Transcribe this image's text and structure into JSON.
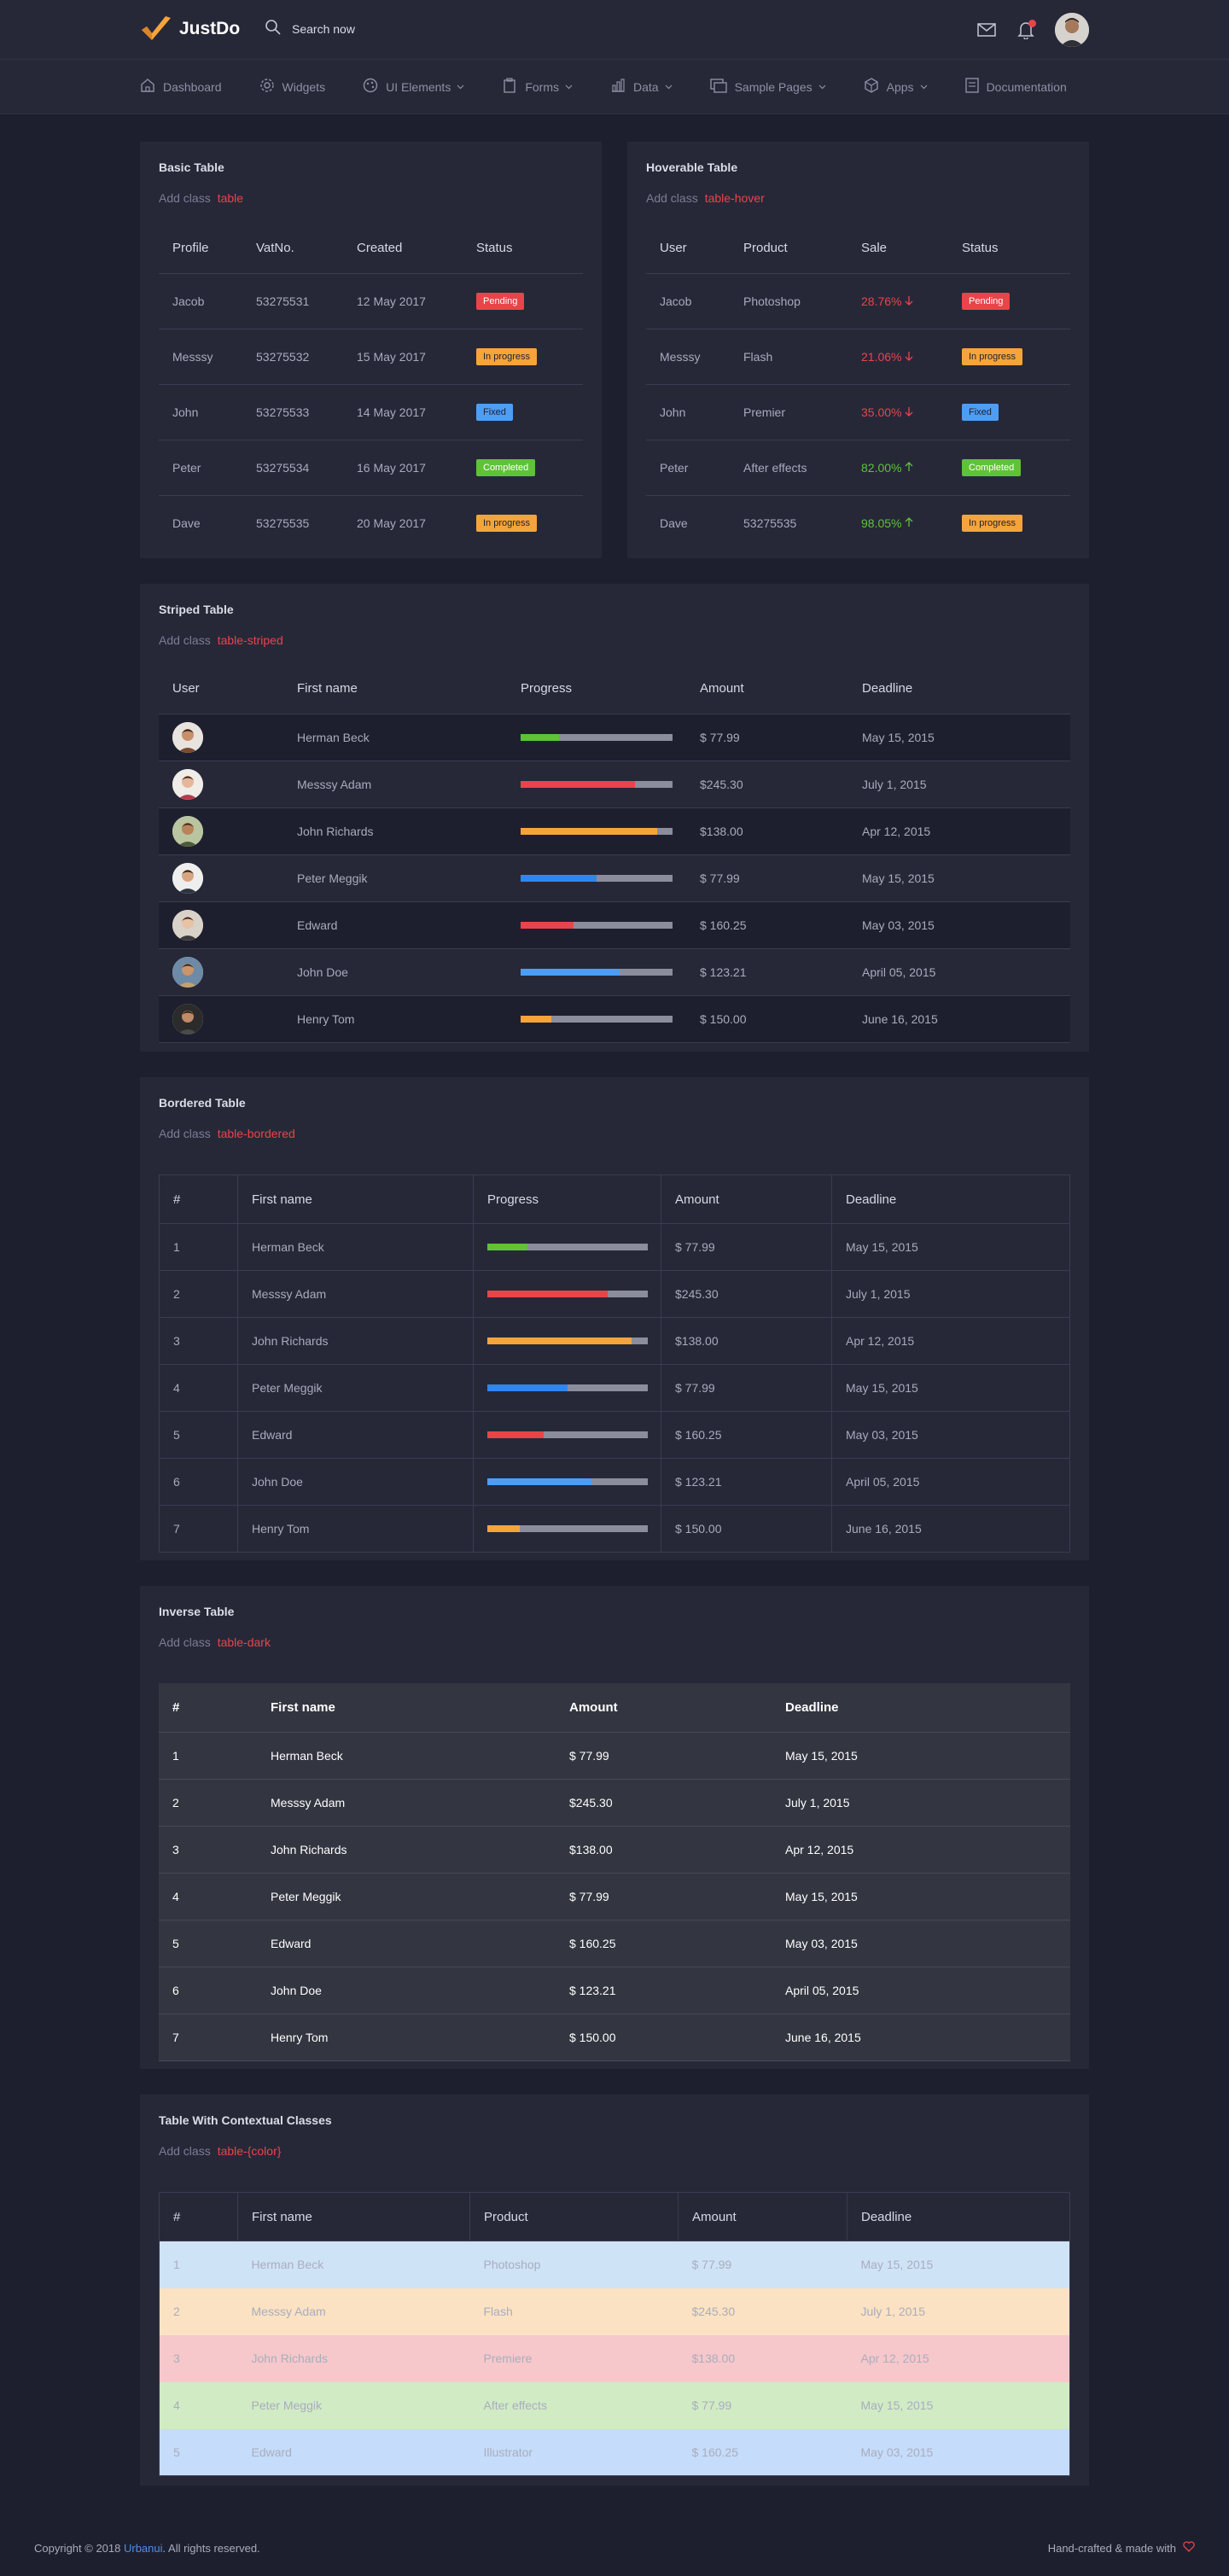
{
  "brand": {
    "name": "JustDo"
  },
  "search": {
    "placeholder": "Search now"
  },
  "nav": [
    {
      "label": "Dashboard",
      "icon": "home-icon",
      "dropdown": false
    },
    {
      "label": "Widgets",
      "icon": "gear-icon",
      "dropdown": false
    },
    {
      "label": "UI Elements",
      "icon": "palette-icon",
      "dropdown": true
    },
    {
      "label": "Forms",
      "icon": "clipboard-icon",
      "dropdown": true
    },
    {
      "label": "Data",
      "icon": "chart-icon",
      "dropdown": true
    },
    {
      "label": "Sample Pages",
      "icon": "pages-icon",
      "dropdown": true
    },
    {
      "label": "Apps",
      "icon": "box-icon",
      "dropdown": true
    },
    {
      "label": "Documentation",
      "icon": "document-icon",
      "dropdown": false
    }
  ],
  "basic": {
    "title": "Basic Table",
    "desc": "Add class",
    "code": "table",
    "headers": [
      "Profile",
      "VatNo.",
      "Created",
      "Status"
    ],
    "rows": [
      {
        "profile": "Jacob",
        "vat": "53275531",
        "created": "12 May 2017",
        "status": "Pending",
        "color": "#e9444a",
        "dark": false
      },
      {
        "profile": "Messsy",
        "vat": "53275532",
        "created": "15 May 2017",
        "status": "In progress",
        "color": "#f5a43c",
        "dark": true
      },
      {
        "profile": "John",
        "vat": "53275533",
        "created": "14 May 2017",
        "status": "Fixed",
        "color": "#4e9df5",
        "dark": true
      },
      {
        "profile": "Peter",
        "vat": "53275534",
        "created": "16 May 2017",
        "status": "Completed",
        "color": "#5fc237",
        "dark": false
      },
      {
        "profile": "Dave",
        "vat": "53275535",
        "created": "20 May 2017",
        "status": "In progress",
        "color": "#f5a43c",
        "dark": true
      }
    ]
  },
  "hover": {
    "title": "Hoverable Table",
    "desc": "Add class",
    "code": "table-hover",
    "headers": [
      "User",
      "Product",
      "Sale",
      "Status"
    ],
    "rows": [
      {
        "user": "Jacob",
        "product": "Photoshop",
        "sale": "28.76%",
        "up": false,
        "status": "Pending",
        "color": "#e9444a",
        "dark": false
      },
      {
        "user": "Messsy",
        "product": "Flash",
        "sale": "21.06%",
        "up": false,
        "status": "In progress",
        "color": "#f5a43c",
        "dark": true
      },
      {
        "user": "John",
        "product": "Premier",
        "sale": "35.00%",
        "up": false,
        "status": "Fixed",
        "color": "#4e9df5",
        "dark": true
      },
      {
        "user": "Peter",
        "product": "After effects",
        "sale": "82.00%",
        "up": true,
        "status": "Completed",
        "color": "#5fc237",
        "dark": false
      },
      {
        "user": "Dave",
        "product": "53275535",
        "sale": "98.05%",
        "up": true,
        "status": "In progress",
        "color": "#f5a43c",
        "dark": true
      }
    ]
  },
  "striped": {
    "title": "Striped Table",
    "desc": "Add class",
    "code": "table-striped",
    "headers": [
      "User",
      "First name",
      "Progress",
      "Amount",
      "Deadline"
    ],
    "rows": [
      {
        "name": "Herman Beck",
        "progress": 25,
        "color": "#5fc237",
        "amount": "$ 77.99",
        "deadline": "May 15, 2015"
      },
      {
        "name": "Messsy Adam",
        "progress": 75,
        "color": "#e9444a",
        "amount": "$245.30",
        "deadline": "July 1, 2015"
      },
      {
        "name": "John Richards",
        "progress": 90,
        "color": "#f5a43c",
        "amount": "$138.00",
        "deadline": "Apr 12, 2015"
      },
      {
        "name": "Peter Meggik",
        "progress": 50,
        "color": "#2f86f0",
        "amount": "$ 77.99",
        "deadline": "May 15, 2015"
      },
      {
        "name": "Edward",
        "progress": 35,
        "color": "#e9444a",
        "amount": "$ 160.25",
        "deadline": "May 03, 2015"
      },
      {
        "name": "John Doe",
        "progress": 65,
        "color": "#4e9df5",
        "amount": "$ 123.21",
        "deadline": "April 05, 2015"
      },
      {
        "name": "Henry Tom",
        "progress": 20,
        "color": "#f5a43c",
        "amount": "$ 150.00",
        "deadline": "June 16, 2015"
      }
    ]
  },
  "bordered": {
    "title": "Bordered Table",
    "desc": "Add class",
    "code": "table-bordered",
    "headers": [
      "#",
      "First name",
      "Progress",
      "Amount",
      "Deadline"
    ],
    "rows": [
      {
        "num": "1",
        "name": "Herman Beck",
        "progress": 25,
        "color": "#5fc237",
        "amount": "$ 77.99",
        "deadline": "May 15, 2015"
      },
      {
        "num": "2",
        "name": "Messsy Adam",
        "progress": 75,
        "color": "#e9444a",
        "amount": "$245.30",
        "deadline": "July 1, 2015"
      },
      {
        "num": "3",
        "name": "John Richards",
        "progress": 90,
        "color": "#f5a43c",
        "amount": "$138.00",
        "deadline": "Apr 12, 2015"
      },
      {
        "num": "4",
        "name": "Peter Meggik",
        "progress": 50,
        "color": "#2f86f0",
        "amount": "$ 77.99",
        "deadline": "May 15, 2015"
      },
      {
        "num": "5",
        "name": "Edward",
        "progress": 35,
        "color": "#e9444a",
        "amount": "$ 160.25",
        "deadline": "May 03, 2015"
      },
      {
        "num": "6",
        "name": "John Doe",
        "progress": 65,
        "color": "#4e9df5",
        "amount": "$ 123.21",
        "deadline": "April 05, 2015"
      },
      {
        "num": "7",
        "name": "Henry Tom",
        "progress": 20,
        "color": "#f5a43c",
        "amount": "$ 150.00",
        "deadline": "June 16, 2015"
      }
    ]
  },
  "inverse": {
    "title": "Inverse Table",
    "desc": "Add class",
    "code": "table-dark",
    "headers": [
      "#",
      "First name",
      "Amount",
      "Deadline"
    ],
    "rows": [
      {
        "num": "1",
        "name": "Herman Beck",
        "amount": "$ 77.99",
        "deadline": "May 15, 2015"
      },
      {
        "num": "2",
        "name": "Messsy Adam",
        "amount": "$245.30",
        "deadline": "July 1, 2015"
      },
      {
        "num": "3",
        "name": "John Richards",
        "amount": "$138.00",
        "deadline": "Apr 12, 2015"
      },
      {
        "num": "4",
        "name": "Peter Meggik",
        "amount": "$ 77.99",
        "deadline": "May 15, 2015"
      },
      {
        "num": "5",
        "name": "Edward",
        "amount": "$ 160.25",
        "deadline": "May 03, 2015"
      },
      {
        "num": "6",
        "name": "John Doe",
        "amount": "$ 123.21",
        "deadline": "April 05, 2015"
      },
      {
        "num": "7",
        "name": "Henry Tom",
        "amount": "$ 150.00",
        "deadline": "June 16, 2015"
      }
    ]
  },
  "contextual": {
    "title": "Table With Contextual Classes",
    "desc": "Add class",
    "code": "table-{color}",
    "headers": [
      "#",
      "First name",
      "Product",
      "Amount",
      "Deadline"
    ],
    "rows": [
      {
        "num": "1",
        "name": "Herman Beck",
        "product": "Photoshop",
        "amount": "$ 77.99",
        "deadline": "May 15, 2015",
        "bg": "#cfe3f7"
      },
      {
        "num": "2",
        "name": "Messsy Adam",
        "product": "Flash",
        "amount": "$245.30",
        "deadline": "July 1, 2015",
        "bg": "#fbe2c3"
      },
      {
        "num": "3",
        "name": "John Richards",
        "product": "Premiere",
        "amount": "$138.00",
        "deadline": "Apr 12, 2015",
        "bg": "#f6c8cb"
      },
      {
        "num": "4",
        "name": "Peter Meggik",
        "product": "After effects",
        "amount": "$ 77.99",
        "deadline": "May 15, 2015",
        "bg": "#d1ebc4"
      },
      {
        "num": "5",
        "name": "Edward",
        "product": "Illustrator",
        "amount": "$ 160.25",
        "deadline": "May 03, 2015",
        "bg": "#c5dcfa"
      }
    ]
  },
  "footer": {
    "copyright_prefix": "Copyright © 2018",
    "company": "Urbanui",
    "copyright_suffix": ". All rights reserved.",
    "right": "Hand-crafted & made with"
  }
}
